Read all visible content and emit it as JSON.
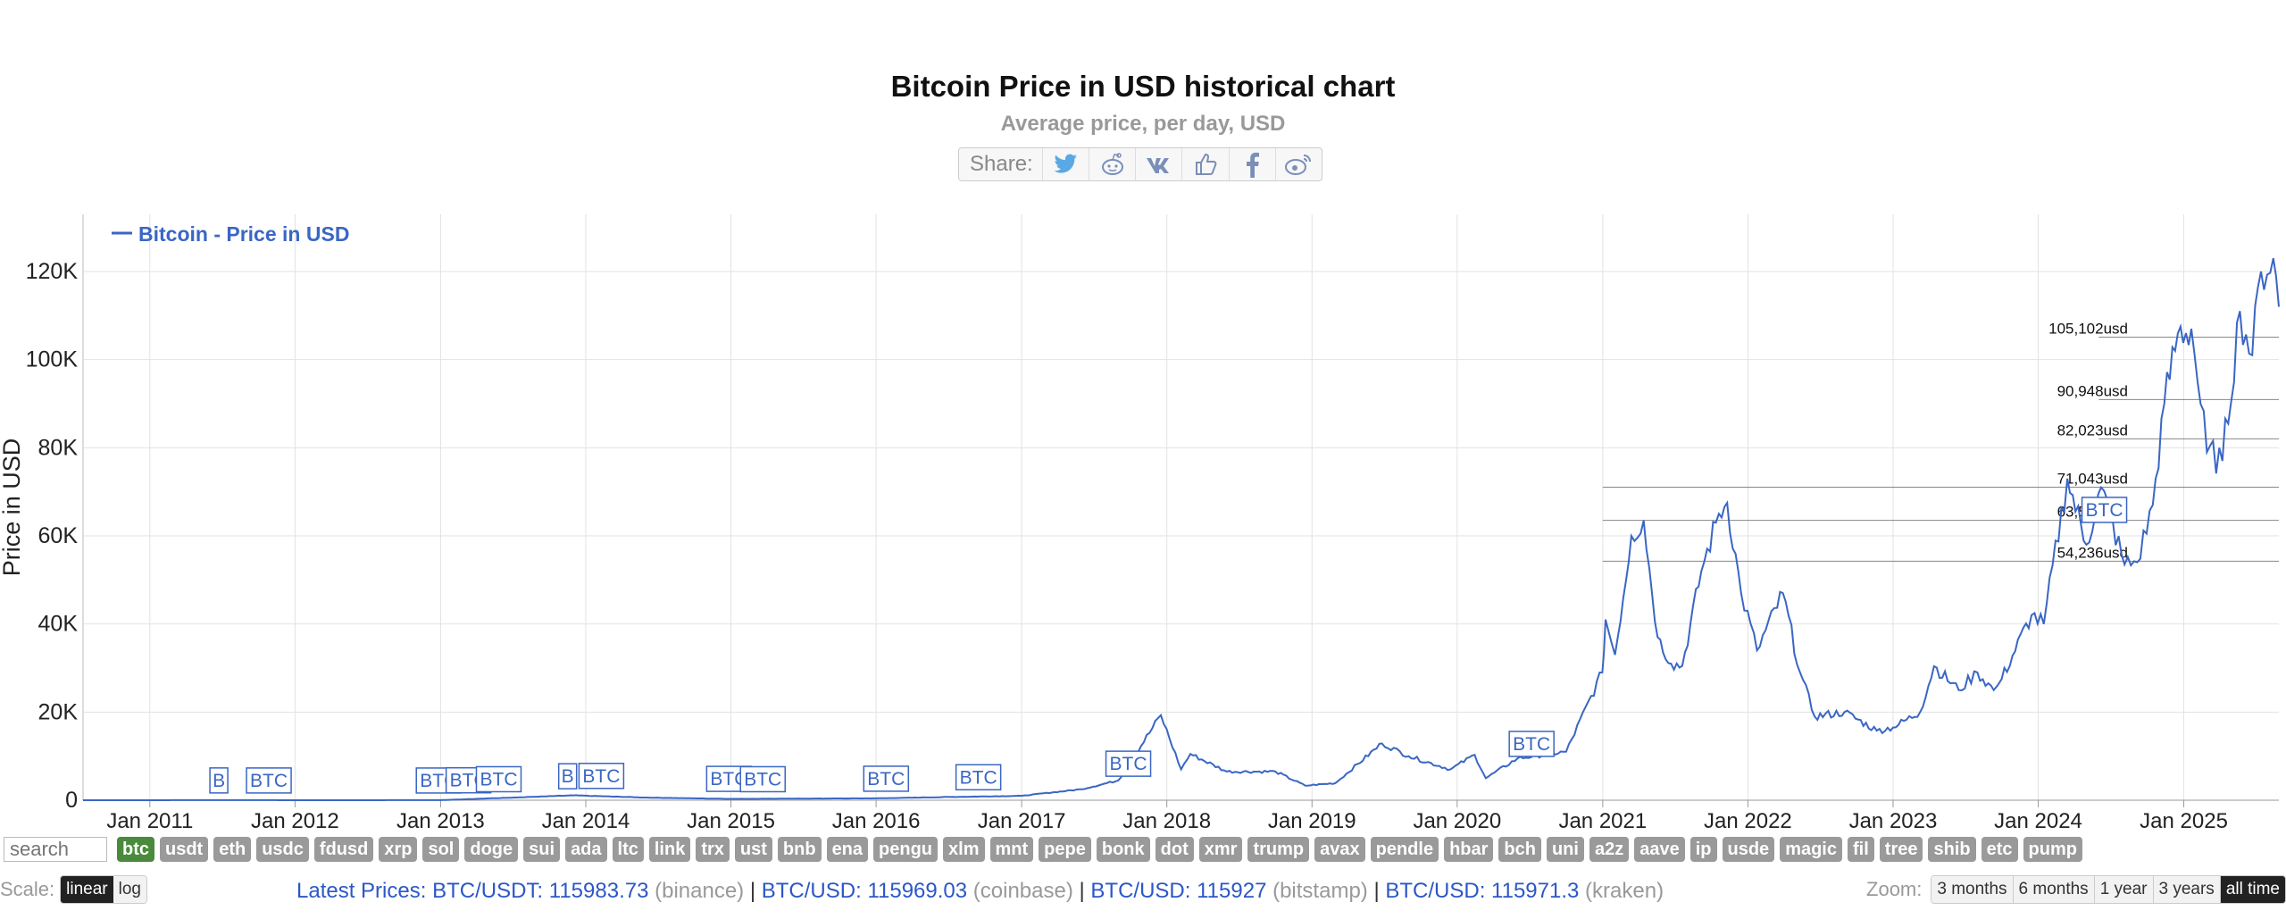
{
  "header": {
    "title": "Bitcoin Price in USD historical chart",
    "subtitle": "Average price, per day, USD",
    "share_label": "Share:",
    "share_icons": [
      "twitter-icon",
      "reddit-icon",
      "vk-icon",
      "like-icon",
      "facebook-icon",
      "weibo-icon"
    ]
  },
  "chart_data": {
    "type": "line",
    "title": "Bitcoin Price in USD historical chart",
    "subtitle": "Average price, per day, USD",
    "ylabel": "Price in USD",
    "xlabel": "",
    "ylim": [
      0,
      130000
    ],
    "yticks": [
      0,
      20000,
      40000,
      60000,
      80000,
      100000,
      120000
    ],
    "ytick_labels": [
      "0",
      "20K",
      "40K",
      "60K",
      "80K",
      "100K",
      "120K"
    ],
    "xticks": [
      "Jan 2011",
      "Jan 2012",
      "Jan 2013",
      "Jan 2014",
      "Jan 2015",
      "Jan 2016",
      "Jan 2017",
      "Jan 2018",
      "Jan 2019",
      "Jan 2020",
      "Jan 2021",
      "Jan 2022",
      "Jan 2023",
      "Jan 2024",
      "Jan 2025"
    ],
    "grid": true,
    "legend": {
      "position": "top-left",
      "entries": [
        "Bitcoin - Price in USD"
      ]
    },
    "color": "#3a66c4",
    "series": [
      {
        "name": "Bitcoin - Price in USD",
        "x": [
          "2010-07-17",
          "2011-01-01",
          "2011-06-08",
          "2012-01-01",
          "2013-01-01",
          "2013-12-01",
          "2014-06-01",
          "2015-01-01",
          "2016-01-01",
          "2016-06-15",
          "2017-01-01",
          "2017-06-01",
          "2017-09-01",
          "2017-12-17",
          "2018-02-06",
          "2018-03-01",
          "2018-06-01",
          "2018-10-01",
          "2018-12-15",
          "2019-03-01",
          "2019-06-26",
          "2019-09-01",
          "2019-12-15",
          "2020-02-14",
          "2020-03-13",
          "2020-06-01",
          "2020-10-01",
          "2020-12-31",
          "2021-01-08",
          "2021-02-01",
          "2021-03-14",
          "2021-04-14",
          "2021-05-19",
          "2021-06-22",
          "2021-07-20",
          "2021-09-06",
          "2021-10-20",
          "2021-11-10",
          "2021-12-15",
          "2022-01-24",
          "2022-03-30",
          "2022-05-12",
          "2022-06-18",
          "2022-09-01",
          "2022-11-21",
          "2023-01-01",
          "2023-03-10",
          "2023-04-14",
          "2023-06-15",
          "2023-08-01",
          "2023-09-11",
          "2023-10-01",
          "2023-12-15",
          "2024-01-15",
          "2024-03-14",
          "2024-05-01",
          "2024-06-07",
          "2024-08-05",
          "2024-09-06",
          "2024-10-15",
          "2024-11-13",
          "2024-12-17",
          "2025-01-20",
          "2025-02-28",
          "2025-04-08",
          "2025-05-22",
          "2025-06-22",
          "2025-07-14",
          "2025-08-14",
          "2025-08-28"
        ],
        "y": [
          0.05,
          0.3,
          30,
          5,
          13,
          1100,
          600,
          300,
          430,
          700,
          1000,
          2500,
          4500,
          19300,
          7000,
          10500,
          6500,
          6500,
          3300,
          3900,
          12900,
          10000,
          7000,
          10300,
          5000,
          9500,
          11000,
          29000,
          41000,
          33000,
          60000,
          63500,
          37000,
          31000,
          30500,
          52000,
          65000,
          67500,
          47000,
          34000,
          47000,
          29000,
          19000,
          20000,
          15800,
          16500,
          20000,
          30400,
          25000,
          29000,
          25000,
          27500,
          42000,
          40000,
          73000,
          58000,
          71000,
          53500,
          54000,
          67000,
          90000,
          106000,
          107000,
          79000,
          77000,
          111000,
          101000,
          120000,
          123000,
          112000
        ]
      }
    ],
    "reference_lines": [
      105102,
      90948,
      82023,
      71043,
      63530,
      54236
    ],
    "reference_labels": [
      "105,102usd",
      "90,948usd",
      "82,023usd",
      "71,043usd",
      "63,530usd",
      "54,236usd"
    ],
    "event_markers": [
      {
        "date": "2011-06-01",
        "label": "B"
      },
      {
        "date": "2011-09-01",
        "label": "BTC"
      },
      {
        "date": "2012-11-01",
        "label": "BTC"
      },
      {
        "date": "2013-01-15",
        "label": "BTC"
      },
      {
        "date": "2013-04-01",
        "label": "BTC"
      },
      {
        "date": "2013-10-25",
        "label": "B"
      },
      {
        "date": "2013-12-15",
        "label": "BTC"
      },
      {
        "date": "2014-11-01",
        "label": "BTC"
      },
      {
        "date": "2015-01-25",
        "label": "BTC"
      },
      {
        "date": "2015-12-01",
        "label": "BTC"
      },
      {
        "date": "2016-07-20",
        "label": "BTC"
      },
      {
        "date": "2017-08-01",
        "label": "BTC"
      },
      {
        "date": "2020-05-11",
        "label": "BTC"
      },
      {
        "date": "2024-04-20",
        "label": "BTC"
      }
    ]
  },
  "tags": [
    "btc",
    "usdt",
    "eth",
    "usdc",
    "fdusd",
    "xrp",
    "sol",
    "doge",
    "sui",
    "ada",
    "ltc",
    "link",
    "trx",
    "ust",
    "bnb",
    "ena",
    "pengu",
    "xlm",
    "mnt",
    "pepe",
    "bonk",
    "dot",
    "xmr",
    "trump",
    "avax",
    "pendle",
    "hbar",
    "bch",
    "uni",
    "a2z",
    "aave",
    "ip",
    "usde",
    "magic",
    "fil",
    "tree",
    "shib",
    "etc",
    "pump"
  ],
  "active_tag": "btc",
  "search": {
    "placeholder": "search"
  },
  "scale": {
    "label": "Scale:",
    "options": [
      "linear",
      "log"
    ],
    "selected": "linear"
  },
  "latest_prices": {
    "label": "Latest Prices:",
    "items": [
      {
        "pair": "BTC/USDT:",
        "value": "115983.73",
        "exchange": "(binance)"
      },
      {
        "pair": "BTC/USD:",
        "value": "115969.03",
        "exchange": "(coinbase)"
      },
      {
        "pair": "BTC/USD:",
        "value": "115927",
        "exchange": "(bitstamp)"
      },
      {
        "pair": "BTC/USD:",
        "value": "115971.3",
        "exchange": "(kraken)"
      }
    ]
  },
  "zoom": {
    "label": "Zoom:",
    "options": [
      "3 months",
      "6 months",
      "1 year",
      "3 years",
      "all time"
    ],
    "selected": "all time"
  }
}
